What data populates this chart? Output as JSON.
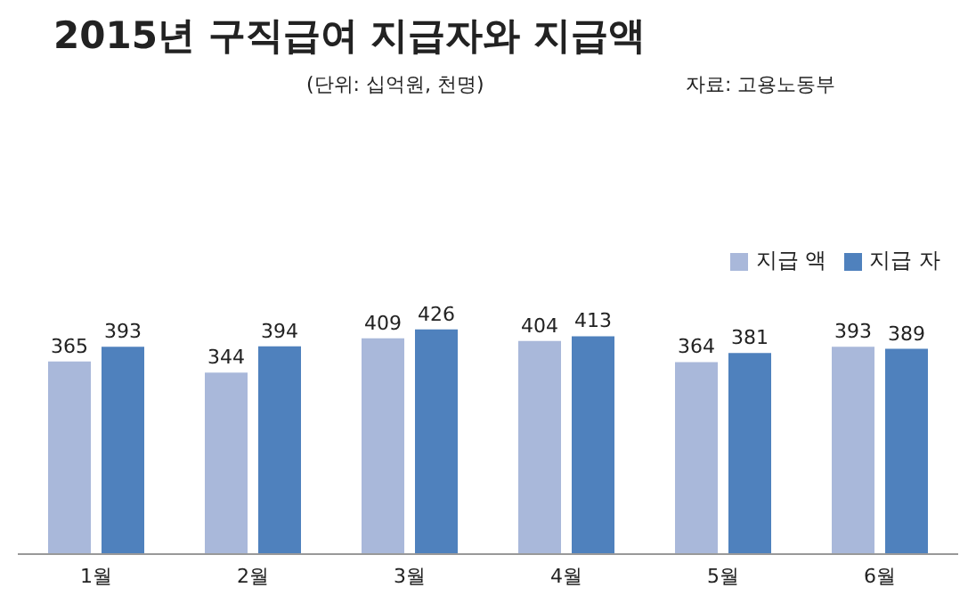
{
  "chart_data": {
    "type": "bar",
    "title": "2015년 구직급여 지급자와 지급액",
    "subtitle": "(단위: 십억원, 천명)",
    "annotations": [
      "자료: 고용노동부"
    ],
    "categories": [
      "1월",
      "2월",
      "3월",
      "4월",
      "5월",
      "6월"
    ],
    "series": [
      {
        "name": "지급 액",
        "color": "#a9b8da",
        "values": [
          365,
          344,
          409,
          404,
          364,
          393
        ]
      },
      {
        "name": "지급 자",
        "color": "#4f81bd",
        "values": [
          393,
          394,
          426,
          413,
          381,
          389
        ]
      }
    ],
    "data_labels": true,
    "legend": "top right",
    "grid": false
  }
}
